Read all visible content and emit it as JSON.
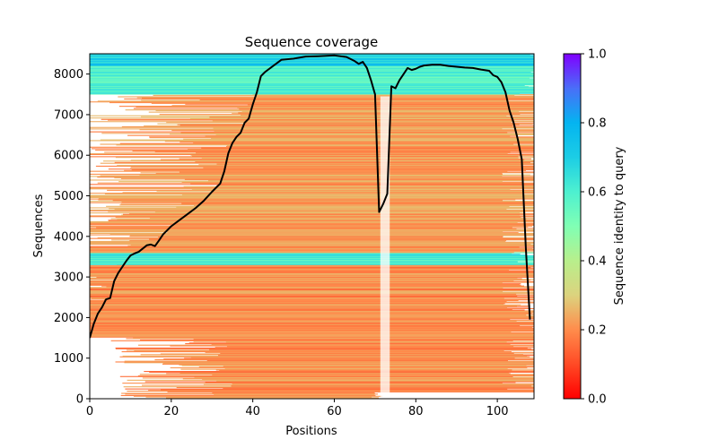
{
  "chart_data": {
    "type": "heatmap",
    "title": "Sequence coverage",
    "xlabel": "Positions",
    "ylabel": "Sequences",
    "xlim": [
      0,
      109
    ],
    "ylim": [
      0,
      8500
    ],
    "xticks": [
      0,
      20,
      40,
      60,
      80,
      100
    ],
    "yticks": [
      0,
      1000,
      2000,
      3000,
      4000,
      5000,
      6000,
      7000,
      8000
    ],
    "colorbar": {
      "label": "Sequence identity to query",
      "range": [
        0.0,
        1.0
      ],
      "ticks": [
        "0.0",
        "0.2",
        "0.4",
        "0.6",
        "0.8",
        "1.0"
      ],
      "colormap": "rainbow_r"
    },
    "identity_bands": [
      {
        "from_seq": 0,
        "to_seq": 3300,
        "identity": 0.2
      },
      {
        "from_seq": 3300,
        "to_seq": 3600,
        "identity": 0.62
      },
      {
        "from_seq": 3600,
        "to_seq": 7500,
        "identity": 0.22
      },
      {
        "from_seq": 7500,
        "to_seq": 8200,
        "identity": 0.58
      },
      {
        "from_seq": 8200,
        "to_seq": 8500,
        "identity": 0.7
      }
    ],
    "coverage_line": {
      "name": "coverage",
      "color": "#000000",
      "x": [
        0,
        1,
        2,
        3,
        4,
        5,
        6,
        7,
        8,
        9,
        10,
        11,
        12,
        13,
        14,
        15,
        16,
        17,
        18,
        19,
        20,
        22,
        24,
        26,
        28,
        30,
        32,
        33,
        34,
        35,
        36,
        37,
        38,
        39,
        40,
        41,
        42,
        43,
        45,
        47,
        50,
        53,
        56,
        60,
        63,
        65,
        66,
        67,
        68,
        69,
        70,
        71,
        72,
        73,
        74,
        75,
        76,
        77,
        78,
        79,
        80,
        81,
        82,
        84,
        86,
        88,
        90,
        92,
        94,
        96,
        98,
        99,
        100,
        101,
        102,
        103,
        104,
        105,
        106,
        107,
        108
      ],
      "y": [
        1500,
        1850,
        2100,
        2250,
        2450,
        2480,
        2900,
        3100,
        3250,
        3400,
        3530,
        3580,
        3620,
        3700,
        3780,
        3800,
        3760,
        3900,
        4050,
        4150,
        4250,
        4400,
        4550,
        4700,
        4880,
        5100,
        5300,
        5600,
        6050,
        6300,
        6450,
        6550,
        6800,
        6900,
        7250,
        7550,
        7950,
        8050,
        8200,
        8350,
        8380,
        8430,
        8440,
        8460,
        8420,
        8320,
        8250,
        8300,
        8150,
        7850,
        7500,
        4600,
        4800,
        5050,
        7700,
        7650,
        7850,
        8000,
        8150,
        8100,
        8130,
        8180,
        8210,
        8230,
        8230,
        8200,
        8180,
        8160,
        8150,
        8110,
        8080,
        7970,
        7930,
        7800,
        7550,
        7100,
        6800,
        6400,
        5900,
        3700,
        1950
      ]
    }
  }
}
